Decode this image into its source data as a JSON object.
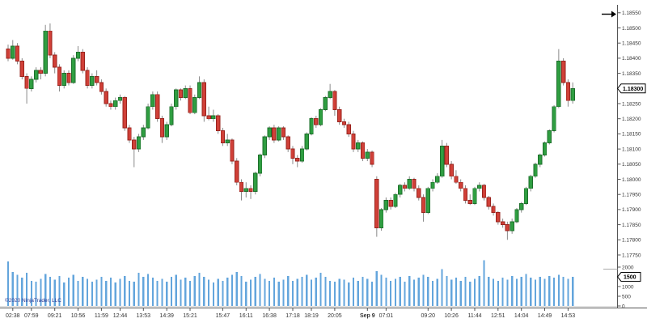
{
  "chart": {
    "copyright": "©2020 NinjaTrader, LLC"
  },
  "colors": {
    "background": "#ffffff",
    "up_fill": "#2f9e41",
    "up_border": "#1d6f2b",
    "down_fill": "#d04038",
    "down_border": "#9a231d",
    "wick": "#8a8a8a",
    "volume_bar": "#63a5dc",
    "axis_line": "#555555",
    "axis_text": "#333333",
    "zero_line": "#dddddd",
    "splitter": "#aaaaaa",
    "marker_bg": "#ffffff",
    "marker_border": "#000000",
    "marker_text": "#000000",
    "arrow": "#000000",
    "copyright_text": "#283593"
  },
  "chart_data": {
    "type": "candlestick",
    "legend_position": "none",
    "grid": false,
    "price_axis": {
      "min": 1.1775,
      "max": 1.1855,
      "step": 0.0005,
      "labels": [
        "1.18550",
        "1.18500",
        "1.18450",
        "1.18400",
        "1.18350",
        "1.18300",
        "1.18250",
        "1.18200",
        "1.18150",
        "1.18100",
        "1.18050",
        "1.18000",
        "1.17950",
        "1.17900",
        "1.17850",
        "1.17800",
        "1.17750"
      ]
    },
    "volume_axis": {
      "min": 0,
      "max": 2000,
      "step": 500,
      "labels": [
        "2000",
        "1500",
        "1000",
        "500",
        "0"
      ]
    },
    "price_marker": "1.18300",
    "volume_marker": "1500",
    "time_ticks": [
      {
        "label": "02:38",
        "index": 1
      },
      {
        "label": "07:59",
        "index": 5
      },
      {
        "label": "09:21",
        "index": 10
      },
      {
        "label": "10:56",
        "index": 15
      },
      {
        "label": "11:59",
        "index": 20
      },
      {
        "label": "12:44",
        "index": 24
      },
      {
        "label": "13:53",
        "index": 29
      },
      {
        "label": "14:39",
        "index": 34
      },
      {
        "label": "15:21",
        "index": 39
      },
      {
        "label": "15:47",
        "index": 46
      },
      {
        "label": "16:11",
        "index": 51
      },
      {
        "label": "16:38",
        "index": 56
      },
      {
        "label": "17:18",
        "index": 61
      },
      {
        "label": "18:19",
        "index": 65
      },
      {
        "label": "20:05",
        "index": 70
      },
      {
        "label": "Sep 9",
        "index": 77,
        "bold": true
      },
      {
        "label": "07:01",
        "index": 81
      },
      {
        "label": "09:20",
        "index": 90
      },
      {
        "label": "10:26",
        "index": 95
      },
      {
        "label": "11:44",
        "index": 100
      },
      {
        "label": "12:51",
        "index": 105
      },
      {
        "label": "14:04",
        "index": 110
      },
      {
        "label": "14:49",
        "index": 115
      },
      {
        "label": "14:53",
        "index": 120
      }
    ],
    "candles": [
      [
        1.1843,
        1.18445,
        1.1839,
        1.184
      ],
      [
        1.184,
        1.1846,
        1.18395,
        1.1844
      ],
      [
        1.1844,
        1.1845,
        1.1838,
        1.1839
      ],
      [
        1.1839,
        1.184,
        1.1833,
        1.1834
      ],
      [
        1.1834,
        1.1835,
        1.1825,
        1.183
      ],
      [
        1.183,
        1.1834,
        1.1829,
        1.1833
      ],
      [
        1.1833,
        1.1837,
        1.1832,
        1.1836
      ],
      [
        1.1836,
        1.1837,
        1.1833,
        1.1835
      ],
      [
        1.1835,
        1.1851,
        1.1834,
        1.1849
      ],
      [
        1.1849,
        1.18515,
        1.184,
        1.1841
      ],
      [
        1.1841,
        1.1842,
        1.1835,
        1.1837
      ],
      [
        1.1837,
        1.1838,
        1.1829,
        1.1831
      ],
      [
        1.1831,
        1.1836,
        1.183,
        1.1835
      ],
      [
        1.1835,
        1.1836,
        1.1831,
        1.1832
      ],
      [
        1.1832,
        1.1841,
        1.18315,
        1.184
      ],
      [
        1.184,
        1.1844,
        1.1839,
        1.1842
      ],
      [
        1.1842,
        1.1843,
        1.1835,
        1.1836
      ],
      [
        1.1836,
        1.1837,
        1.183,
        1.1831
      ],
      [
        1.1831,
        1.1835,
        1.183,
        1.1834
      ],
      [
        1.1834,
        1.1836,
        1.1831,
        1.1832
      ],
      [
        1.1832,
        1.1833,
        1.1828,
        1.1829
      ],
      [
        1.1829,
        1.183,
        1.1824,
        1.1825
      ],
      [
        1.1825,
        1.1826,
        1.1823,
        1.1824
      ],
      [
        1.1824,
        1.1827,
        1.1823,
        1.1826
      ],
      [
        1.1826,
        1.1828,
        1.1825,
        1.1827
      ],
      [
        1.1827,
        1.18275,
        1.1816,
        1.1817
      ],
      [
        1.1817,
        1.1818,
        1.1812,
        1.1813
      ],
      [
        1.1813,
        1.1814,
        1.1804,
        1.181
      ],
      [
        1.181,
        1.1815,
        1.1809,
        1.1814
      ],
      [
        1.1814,
        1.1818,
        1.1813,
        1.1817
      ],
      [
        1.1817,
        1.1825,
        1.18165,
        1.1824
      ],
      [
        1.1824,
        1.1829,
        1.1823,
        1.1828
      ],
      [
        1.1828,
        1.1829,
        1.1819,
        1.182
      ],
      [
        1.182,
        1.1821,
        1.1812,
        1.1814
      ],
      [
        1.1814,
        1.1819,
        1.1813,
        1.1818
      ],
      [
        1.1818,
        1.1825,
        1.18175,
        1.1824
      ],
      [
        1.1824,
        1.183,
        1.1823,
        1.18295
      ],
      [
        1.18295,
        1.183,
        1.1826,
        1.1827
      ],
      [
        1.1827,
        1.1831,
        1.18265,
        1.183
      ],
      [
        1.183,
        1.1831,
        1.18215,
        1.1822
      ],
      [
        1.1822,
        1.1828,
        1.18215,
        1.1827
      ],
      [
        1.1827,
        1.1834,
        1.18265,
        1.1832
      ],
      [
        1.1832,
        1.1833,
        1.1819,
        1.1821
      ],
      [
        1.1821,
        1.1824,
        1.18195,
        1.182
      ],
      [
        1.182,
        1.1823,
        1.1819,
        1.1821
      ],
      [
        1.1821,
        1.18215,
        1.1815,
        1.1816
      ],
      [
        1.1816,
        1.1817,
        1.1811,
        1.1812
      ],
      [
        1.1812,
        1.1815,
        1.1811,
        1.1813
      ],
      [
        1.1813,
        1.18135,
        1.1805,
        1.1806
      ],
      [
        1.1806,
        1.1807,
        1.1798,
        1.1799
      ],
      [
        1.1799,
        1.18,
        1.1793,
        1.1796
      ],
      [
        1.1796,
        1.1799,
        1.1794,
        1.1797
      ],
      [
        1.1797,
        1.1798,
        1.17935,
        1.1796
      ],
      [
        1.1796,
        1.18025,
        1.1795,
        1.1802
      ],
      [
        1.1802,
        1.18085,
        1.1801,
        1.1808
      ],
      [
        1.1808,
        1.18145,
        1.1807,
        1.1814
      ],
      [
        1.1814,
        1.18175,
        1.1813,
        1.1817
      ],
      [
        1.1817,
        1.1818,
        1.1812,
        1.1813
      ],
      [
        1.1813,
        1.18175,
        1.18125,
        1.1817
      ],
      [
        1.1817,
        1.18175,
        1.1813,
        1.1814
      ],
      [
        1.1814,
        1.18145,
        1.1809,
        1.181
      ],
      [
        1.181,
        1.1811,
        1.1805,
        1.1807
      ],
      [
        1.1807,
        1.1808,
        1.1804,
        1.1806
      ],
      [
        1.1806,
        1.1811,
        1.18055,
        1.181
      ],
      [
        1.181,
        1.18155,
        1.18095,
        1.1815
      ],
      [
        1.1815,
        1.18205,
        1.18145,
        1.182
      ],
      [
        1.182,
        1.1821,
        1.1817,
        1.1818
      ],
      [
        1.1818,
        1.18235,
        1.18175,
        1.1823
      ],
      [
        1.1823,
        1.18275,
        1.18225,
        1.1827
      ],
      [
        1.1827,
        1.18315,
        1.18265,
        1.1829
      ],
      [
        1.1829,
        1.18295,
        1.1821,
        1.1823
      ],
      [
        1.1823,
        1.1824,
        1.1818,
        1.1819
      ],
      [
        1.1819,
        1.182,
        1.1817,
        1.1818
      ],
      [
        1.1818,
        1.1819,
        1.1814,
        1.1815
      ],
      [
        1.1815,
        1.1816,
        1.1809,
        1.181
      ],
      [
        1.181,
        1.1813,
        1.1809,
        1.1812
      ],
      [
        1.1812,
        1.18125,
        1.1806,
        1.1807
      ],
      [
        1.1807,
        1.181,
        1.1806,
        1.1809
      ],
      [
        1.1809,
        1.18095,
        1.1804,
        1.1805
      ],
      [
        1.18,
        1.1801,
        1.1781,
        1.1784
      ],
      [
        1.1784,
        1.17905,
        1.1783,
        1.179
      ],
      [
        1.179,
        1.1794,
        1.1789,
        1.1793
      ],
      [
        1.1793,
        1.1794,
        1.179,
        1.1791
      ],
      [
        1.1791,
        1.17955,
        1.17905,
        1.1795
      ],
      [
        1.1795,
        1.17985,
        1.1794,
        1.1798
      ],
      [
        1.1798,
        1.1799,
        1.1796,
        1.1797
      ],
      [
        1.1797,
        1.1801,
        1.17965,
        1.18
      ],
      [
        1.18,
        1.18005,
        1.1796,
        1.1797
      ],
      [
        1.1797,
        1.1798,
        1.1793,
        1.1794
      ],
      [
        1.1794,
        1.1795,
        1.1786,
        1.1789
      ],
      [
        1.1789,
        1.17975,
        1.17885,
        1.1797
      ],
      [
        1.1797,
        1.18,
        1.1796,
        1.1799
      ],
      [
        1.1799,
        1.1802,
        1.17985,
        1.1801
      ],
      [
        1.1801,
        1.1813,
        1.18005,
        1.1811
      ],
      [
        1.1811,
        1.1812,
        1.1804,
        1.1805
      ],
      [
        1.1805,
        1.1806,
        1.18,
        1.1801
      ],
      [
        1.1801,
        1.1803,
        1.17985,
        1.1799
      ],
      [
        1.1799,
        1.18,
        1.1796,
        1.1797
      ],
      [
        1.1797,
        1.1798,
        1.1792,
        1.1793
      ],
      [
        1.1793,
        1.1795,
        1.17915,
        1.1792
      ],
      [
        1.1792,
        1.17975,
        1.17915,
        1.1797
      ],
      [
        1.1797,
        1.1799,
        1.1796,
        1.1798
      ],
      [
        1.1798,
        1.17985,
        1.1793,
        1.1794
      ],
      [
        1.1794,
        1.17945,
        1.179,
        1.1791
      ],
      [
        1.1791,
        1.1792,
        1.1788,
        1.1789
      ],
      [
        1.1789,
        1.17895,
        1.1785,
        1.1786
      ],
      [
        1.1786,
        1.1787,
        1.1784,
        1.1785
      ],
      [
        1.1785,
        1.1786,
        1.178,
        1.1783
      ],
      [
        1.1783,
        1.1787,
        1.1782,
        1.1786
      ],
      [
        1.1786,
        1.17905,
        1.17855,
        1.179
      ],
      [
        1.179,
        1.17925,
        1.1789,
        1.1792
      ],
      [
        1.1792,
        1.17975,
        1.17915,
        1.1797
      ],
      [
        1.1797,
        1.18015,
        1.1796,
        1.1801
      ],
      [
        1.1801,
        1.18055,
        1.18005,
        1.1805
      ],
      [
        1.1805,
        1.18085,
        1.1804,
        1.1808
      ],
      [
        1.1808,
        1.18125,
        1.18075,
        1.1812
      ],
      [
        1.1812,
        1.18165,
        1.18115,
        1.1816
      ],
      [
        1.1816,
        1.18245,
        1.18155,
        1.1824
      ],
      [
        1.1824,
        1.1843,
        1.18235,
        1.1839
      ],
      [
        1.1839,
        1.184,
        1.1831,
        1.1832
      ],
      [
        1.1832,
        1.1833,
        1.1824,
        1.1826
      ],
      [
        1.1826,
        1.1832,
        1.1825,
        1.183
      ]
    ],
    "volumes": [
      2300,
      1750,
      1600,
      1450,
      1700,
      1300,
      1250,
      1400,
      1650,
      1500,
      1350,
      1550,
      1200,
      1450,
      1600,
      1300,
      1500,
      1400,
      1250,
      1350,
      1500,
      1300,
      1450,
      1200,
      1400,
      1550,
      1300,
      1250,
      1700,
      1500,
      1650,
      1450,
      1300,
      1400,
      1250,
      1500,
      1600,
      1350,
      1450,
      1300,
      1550,
      1700,
      1500,
      1350,
      1200,
      1400,
      1300,
      1450,
      1600,
      1750,
      1550,
      1250,
      1350,
      1500,
      1650,
      1400,
      1300,
      1450,
      1250,
      1350,
      1550,
      1300,
      1400,
      1500,
      1600,
      1350,
      1450,
      1700,
      1500,
      1300,
      1250,
      1400,
      1350,
      1200,
      1450,
      1300,
      1500,
      1400,
      1250,
      1800,
      1600,
      1450,
      1300,
      1400,
      1500,
      1250,
      1550,
      1350,
      1450,
      1600,
      1500,
      1300,
      1400,
      1900,
      1550,
      1350,
      1450,
      1300,
      1500,
      1250,
      1400,
      1550,
      2350,
      1500,
      1400,
      1300,
      1450,
      1350,
      1550,
      1400,
      1500,
      1650,
      1450,
      1350,
      1500,
      1400,
      1550,
      1450,
      1600,
      1500,
      1400,
      1500
    ]
  }
}
